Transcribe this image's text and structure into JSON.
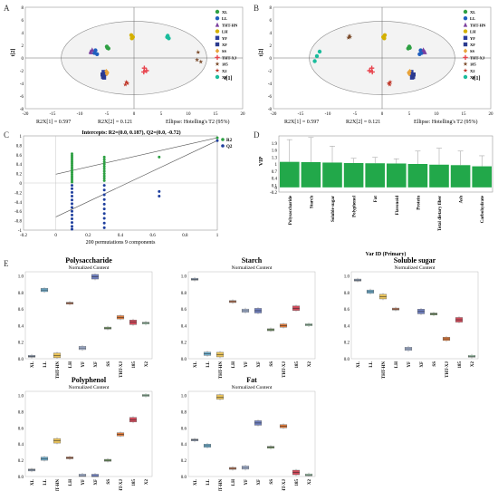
{
  "chart_data": [
    {
      "panel": "A",
      "type": "scatter",
      "xlabel": "t[1]",
      "ylabel": "t[2]",
      "xlim": [
        -20,
        20
      ],
      "ylim": [
        -8,
        8
      ],
      "xticks": [
        "-20",
        "-15",
        "-10",
        "-5",
        "0",
        "5",
        "10",
        "15",
        "20"
      ],
      "yticks": [
        "-8",
        "-6",
        "-4",
        "-2",
        "0",
        "2",
        "4",
        "6",
        "8"
      ],
      "footer": [
        "R2X[1] = 0.597",
        "R2X[2] = 0.121",
        "Ellipse: Hotelling's T2 (95%)"
      ],
      "series": [
        {
          "name": "XL",
          "color": "#2ea043",
          "marker": "circle",
          "points": [
            [
              -5,
              1.8
            ],
            [
              -4.7,
              1.5
            ],
            [
              -4.9,
              1.6
            ]
          ]
        },
        {
          "name": "LL",
          "color": "#1f5fbf",
          "marker": "circle",
          "points": [
            [
              -7.3,
              0.8
            ],
            [
              -6.8,
              0.6
            ],
            [
              -7.1,
              1.2
            ]
          ]
        },
        {
          "name": "THT-HN",
          "color": "#7b3f9e",
          "marker": "triangle",
          "points": [
            [
              -8,
              1.0
            ],
            [
              -7.7,
              1.3
            ],
            [
              -7.9,
              0.9
            ]
          ]
        },
        {
          "name": "LH",
          "color": "#d4b000",
          "marker": "circle",
          "points": [
            [
              -0.5,
              3.6
            ],
            [
              -0.2,
              3.3
            ],
            [
              -0.4,
              3.1
            ]
          ]
        },
        {
          "name": "YF",
          "color": "#2c3e9e",
          "marker": "square",
          "points": [
            [
              -5.6,
              -2.2
            ],
            [
              -5.3,
              -2.5
            ],
            [
              -5.5,
              -3.1
            ]
          ]
        },
        {
          "name": "XF",
          "color": "#2b3a8f",
          "marker": "square",
          "points": [
            [
              -5.8,
              -2.6
            ],
            [
              -5.7,
              -3.0
            ]
          ]
        },
        {
          "name": "SS",
          "color": "#e8a33a",
          "marker": "diamond",
          "points": [
            [
              -4.9,
              -2.3
            ],
            [
              -5.1,
              -2.1
            ],
            [
              -5.0,
              -2.5
            ]
          ]
        },
        {
          "name": "THT-XJ",
          "color": "#e8434d",
          "marker": "plus",
          "points": [
            [
              1.9,
              -1.6
            ],
            [
              2.3,
              -2.0
            ],
            [
              1.8,
              -2.2
            ]
          ]
        },
        {
          "name": "185",
          "color": "#7a4a2a",
          "marker": "star",
          "points": [
            [
              11.8,
              0.9
            ],
            [
              12.3,
              -0.6
            ],
            [
              11.6,
              -0.3
            ]
          ]
        },
        {
          "name": "X2",
          "color": "#c0392b",
          "marker": "star",
          "points": [
            [
              -1.6,
              -4.2
            ],
            [
              -1.2,
              -4.0
            ],
            [
              -1.4,
              -3.8
            ]
          ]
        },
        {
          "name": "X3",
          "color": "#1abc9c",
          "marker": "circle",
          "points": [
            [
              6.1,
              3.3
            ],
            [
              6.4,
              3.1
            ],
            [
              6.2,
              3.5
            ]
          ]
        }
      ]
    },
    {
      "panel": "B",
      "type": "scatter",
      "xlabel": "t[1]",
      "ylabel": "t[2]",
      "xlim": [
        -20,
        20
      ],
      "ylim": [
        -8,
        8
      ],
      "xticks": [
        "-20",
        "-15",
        "-10",
        "-5",
        "0",
        "5",
        "10",
        "15",
        "20"
      ],
      "yticks": [
        "-8",
        "-6",
        "-4",
        "-2",
        "0",
        "2",
        "4",
        "6",
        "8"
      ],
      "footer": [
        "R2X[1] = 0.597",
        "R2X[2] = 0.121",
        "Ellipse: Hotelling's T2 (95%)"
      ],
      "series": [
        {
          "name": "XL",
          "color": "#2ea043",
          "marker": "circle",
          "points": [
            [
              5.0,
              1.8
            ],
            [
              4.8,
              1.5
            ],
            [
              5.1,
              1.6
            ]
          ]
        },
        {
          "name": "LL",
          "color": "#1f5fbf",
          "marker": "circle",
          "points": [
            [
              7.3,
              0.8
            ],
            [
              6.9,
              0.6
            ],
            [
              7.1,
              1.2
            ]
          ]
        },
        {
          "name": "THT-HN",
          "color": "#7b3f9e",
          "marker": "triangle",
          "points": [
            [
              7.8,
              1.0
            ],
            [
              7.6,
              1.3
            ],
            [
              7.9,
              0.9
            ]
          ]
        },
        {
          "name": "LH",
          "color": "#d4b000",
          "marker": "circle",
          "points": [
            [
              0.5,
              3.6
            ],
            [
              0.2,
              3.3
            ],
            [
              0.4,
              3.1
            ]
          ]
        },
        {
          "name": "YF",
          "color": "#2c3e9e",
          "marker": "square",
          "points": [
            [
              5.4,
              -2.2
            ],
            [
              5.3,
              -2.5
            ],
            [
              5.5,
              -3.1
            ]
          ]
        },
        {
          "name": "XF",
          "color": "#2b3a8f",
          "marker": "square",
          "points": [
            [
              5.8,
              -2.6
            ],
            [
              5.7,
              -3.0
            ]
          ]
        },
        {
          "name": "SS",
          "color": "#e8a33a",
          "marker": "diamond",
          "points": [
            [
              4.9,
              -2.3
            ],
            [
              5.1,
              -2.1
            ],
            [
              5.0,
              -2.5
            ]
          ]
        },
        {
          "name": "THT-XJ",
          "color": "#e8434d",
          "marker": "plus",
          "points": [
            [
              -1.9,
              -1.6
            ],
            [
              -2.3,
              -2.0
            ],
            [
              -1.8,
              -2.2
            ]
          ]
        },
        {
          "name": "185",
          "color": "#7a4a2a",
          "marker": "star",
          "points": [
            [
              -6.0,
              3.5
            ],
            [
              -6.2,
              3.2
            ],
            [
              -5.9,
              3.3
            ]
          ]
        },
        {
          "name": "X2",
          "color": "#c0392b",
          "marker": "star",
          "points": [
            [
              1.4,
              -4.2
            ],
            [
              1.2,
              -4.0
            ],
            [
              1.5,
              -3.8
            ]
          ]
        },
        {
          "name": "X3",
          "color": "#1abc9c",
          "marker": "circle",
          "points": [
            [
              -12.0,
              0.3
            ],
            [
              -11.5,
              1.0
            ],
            [
              -12.4,
              -0.5
            ]
          ]
        }
      ]
    },
    {
      "panel": "C",
      "type": "scatter",
      "title": "Intercepts: R2=(0.0, 0.187), Q2=(0.0, -0.72)",
      "xlabel": "200 permutations 9 components",
      "xlim": [
        -0.2,
        1.0
      ],
      "ylim": [
        -1.0,
        1.0
      ],
      "xticks": [
        "-0.2",
        "0",
        "0.2",
        "0.4",
        "0.6",
        "0.8",
        "1"
      ],
      "yticks": [
        "-1",
        "-0.8",
        "-0.6",
        "-0.4",
        "-0.2",
        "0",
        "0.2",
        "0.4",
        "0.6",
        "0.8",
        "1"
      ],
      "legend": [
        "R2",
        "Q2"
      ],
      "series": [
        {
          "name": "R2",
          "color": "#2ea043",
          "points": [
            [
              0.1,
              0.62
            ],
            [
              0.1,
              0.58
            ],
            [
              0.1,
              0.54
            ],
            [
              0.1,
              0.5
            ],
            [
              0.1,
              0.46
            ],
            [
              0.1,
              0.42
            ],
            [
              0.1,
              0.38
            ],
            [
              0.1,
              0.34
            ],
            [
              0.1,
              0.3
            ],
            [
              0.1,
              0.26
            ],
            [
              0.1,
              0.22
            ],
            [
              0.1,
              0.18
            ],
            [
              0.1,
              0.14
            ],
            [
              0.1,
              0.1
            ],
            [
              0.1,
              0.06
            ],
            [
              0.1,
              0.02
            ],
            [
              0.3,
              0.55
            ],
            [
              0.3,
              0.5
            ],
            [
              0.3,
              0.45
            ],
            [
              0.3,
              0.4
            ],
            [
              0.3,
              0.35
            ],
            [
              0.3,
              0.3
            ],
            [
              0.3,
              0.25
            ],
            [
              0.3,
              0.2
            ],
            [
              0.3,
              0.15
            ],
            [
              0.3,
              0.1
            ],
            [
              0.3,
              0.05
            ],
            [
              0.64,
              0.55
            ],
            [
              1.0,
              0.96
            ]
          ],
          "regression": [
            [
              0.0,
              0.187
            ],
            [
              1.0,
              0.96
            ]
          ]
        },
        {
          "name": "Q2",
          "color": "#1f3f9e",
          "points": [
            [
              0.1,
              -0.05
            ],
            [
              0.1,
              -0.12
            ],
            [
              0.1,
              -0.2
            ],
            [
              0.1,
              -0.28
            ],
            [
              0.1,
              -0.36
            ],
            [
              0.1,
              -0.44
            ],
            [
              0.1,
              -0.52
            ],
            [
              0.1,
              -0.6
            ],
            [
              0.1,
              -0.68
            ],
            [
              0.1,
              -0.76
            ],
            [
              0.1,
              -0.84
            ],
            [
              0.1,
              -0.92
            ],
            [
              0.1,
              -0.98
            ],
            [
              0.3,
              -0.05
            ],
            [
              0.3,
              -0.15
            ],
            [
              0.3,
              -0.25
            ],
            [
              0.3,
              -0.35
            ],
            [
              0.3,
              -0.45
            ],
            [
              0.3,
              -0.55
            ],
            [
              0.3,
              -0.65
            ],
            [
              0.3,
              -0.75
            ],
            [
              0.3,
              -0.85
            ],
            [
              0.3,
              -0.95
            ],
            [
              0.64,
              -0.18
            ],
            [
              0.64,
              -0.28
            ],
            [
              1.0,
              0.9
            ]
          ],
          "regression": [
            [
              0.0,
              -0.72
            ],
            [
              1.0,
              0.9
            ]
          ]
        }
      ]
    },
    {
      "panel": "D",
      "type": "bar",
      "xlabel": "Var ID (Primary)",
      "ylabel": "VIP",
      "ylim": [
        -0.2,
        2.2
      ],
      "yticks": [
        "-0.2",
        "0",
        "0.1",
        "0.4",
        "0.7",
        "1",
        "1.3",
        "1.6",
        "1.9"
      ],
      "categories": [
        "Polysaccharide",
        "Starch",
        "Soluble sugar",
        "Polyphenol",
        "Fat",
        "Flavonoid",
        "Protein",
        "Total dietary fiber",
        "Ash",
        "Carbohydrate"
      ],
      "values": [
        1.09,
        1.08,
        1.06,
        1.04,
        1.03,
        1.02,
        1.0,
        0.97,
        0.95,
        0.9
      ],
      "errors": [
        0.95,
        1.05,
        0.7,
        0.2,
        0.25,
        0.2,
        0.55,
        0.7,
        0.6,
        0.45
      ],
      "color": "#22a84a"
    },
    {
      "panel": "E",
      "type": "box",
      "title": "Polysaccharide",
      "subtitle": "Normalized Content",
      "categories": [
        "XL",
        "LL",
        "THT-HN",
        "LH",
        "YF",
        "XF",
        "SS",
        "THT-XJ",
        "185",
        "X2"
      ],
      "yticks": [
        "0.0",
        "0.2",
        "0.4",
        "0.6",
        "0.8",
        "1.0"
      ],
      "medians": [
        0.03,
        0.83,
        0.04,
        0.67,
        0.13,
        0.99,
        0.37,
        0.5,
        0.44,
        0.43
      ]
    },
    {
      "panel": "E",
      "type": "box",
      "title": "Starch",
      "subtitle": "Normalized Content",
      "categories": [
        "XL",
        "LL",
        "THT-HN",
        "LH",
        "YF",
        "XF",
        "SS",
        "THT-XJ",
        "185",
        "X2"
      ],
      "yticks": [
        "0.0",
        "0.2",
        "0.4",
        "0.6",
        "0.8",
        "1.0"
      ],
      "medians": [
        0.96,
        0.06,
        0.05,
        0.69,
        0.58,
        0.58,
        0.35,
        0.4,
        0.61,
        0.41
      ]
    },
    {
      "panel": "E",
      "type": "box",
      "title": "Soluble sugar",
      "subtitle": "Normalized Content",
      "categories": [
        "XL",
        "LL",
        "THT-HN",
        "LH",
        "YF",
        "XF",
        "SS",
        "THT-XJ",
        "185",
        "X2"
      ],
      "yticks": [
        "0.0",
        "0.2",
        "0.4",
        "0.6",
        "0.8",
        "1.0"
      ],
      "medians": [
        0.95,
        0.81,
        0.75,
        0.6,
        0.12,
        0.57,
        0.54,
        0.24,
        0.47,
        0.03
      ]
    },
    {
      "panel": "E",
      "type": "box",
      "title": "Polyphenol",
      "subtitle": "Normalized Content",
      "categories": [
        "XL",
        "LL",
        "THT-HN",
        "LH",
        "YF",
        "XF",
        "SS",
        "THT-XJ",
        "185",
        "X2"
      ],
      "yticks": [
        "0.0",
        "0.2",
        "0.4",
        "0.6",
        "0.8",
        "1.0"
      ],
      "medians": [
        0.08,
        0.22,
        0.44,
        0.23,
        0.01,
        0.0,
        0.2,
        0.52,
        0.7,
        1.0
      ]
    },
    {
      "panel": "E",
      "type": "box",
      "title": "Fat",
      "subtitle": "Normalized Content",
      "categories": [
        "XL",
        "LL",
        "THT-HN",
        "LH",
        "YF",
        "XF",
        "SS",
        "THT-XJ",
        "185",
        "X2"
      ],
      "yticks": [
        "0.0",
        "0.2",
        "0.4",
        "0.6",
        "0.8",
        "1.0"
      ],
      "medians": [
        0.45,
        0.38,
        0.98,
        0.1,
        0.11,
        0.66,
        0.36,
        0.62,
        0.05,
        0.02
      ]
    }
  ],
  "panel_letters": [
    "A",
    "B",
    "C",
    "D",
    "E"
  ],
  "box_colors": [
    "#8fa0b8",
    "#6fb0d0",
    "#e8c25a",
    "#c07a5a",
    "#a8b8d8",
    "#6f7fbf",
    "#7aa06a",
    "#e07a3a",
    "#d04a5a",
    "#a8d8b8"
  ],
  "box_colors_alt": [
    "#8fa0b8",
    "#9ab0c8",
    "#e8c25a",
    "#e0a070",
    "#a8b8d8",
    "#7a8ac8",
    "#b0c060",
    "#e07a3a",
    "#d04a5a",
    "#c0d8c0"
  ]
}
